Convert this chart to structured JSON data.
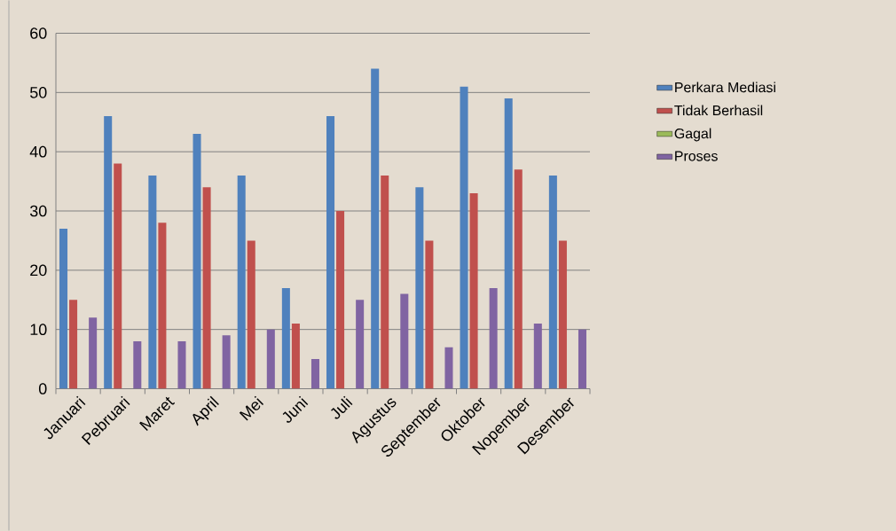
{
  "chart_data": {
    "type": "bar",
    "categories": [
      "Januari",
      "Pebruari",
      "Maret",
      "April",
      "Mei",
      "Juni",
      "Juli",
      "Agustus",
      "September",
      "Oktober",
      "Nopember",
      "Desember"
    ],
    "series": [
      {
        "name": "Perkara Mediasi",
        "color": "#4f81bd",
        "values": [
          27,
          46,
          36,
          43,
          36,
          17,
          46,
          54,
          34,
          51,
          49,
          36
        ]
      },
      {
        "name": "Tidak Berhasil",
        "color": "#c0504d",
        "values": [
          15,
          38,
          28,
          34,
          25,
          11,
          30,
          36,
          25,
          33,
          37,
          25
        ]
      },
      {
        "name": "Gagal",
        "color": "#9bbb59",
        "values": [
          0,
          0,
          0,
          0,
          0,
          0,
          0,
          0,
          0,
          0,
          0,
          0
        ]
      },
      {
        "name": "Proses",
        "color": "#8064a2",
        "values": [
          12,
          8,
          8,
          9,
          10,
          5,
          15,
          16,
          7,
          17,
          11,
          10
        ]
      }
    ],
    "ylim": [
      0,
      60
    ],
    "yticks": [
      0,
      10,
      20,
      30,
      40,
      50,
      60
    ],
    "grid": "y",
    "legend": "right"
  }
}
